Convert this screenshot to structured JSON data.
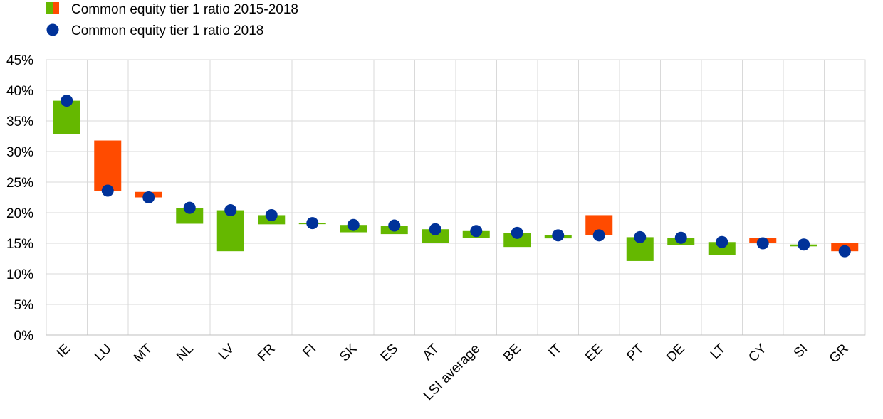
{
  "chart_data": {
    "type": "bar",
    "title": "",
    "xlabel": "",
    "ylabel": "",
    "ylim": [
      0,
      45
    ],
    "yticks": [
      "0%",
      "5%",
      "10%",
      "15%",
      "20%",
      "25%",
      "30%",
      "35%",
      "40%",
      "45%"
    ],
    "grid": true,
    "legend": {
      "placement": "top-left",
      "range_label": "Common equity tier 1 ratio 2015-2018",
      "point_label": "Common equity tier 1 ratio 2018"
    },
    "colors": {
      "increase": "#65B800",
      "decrease": "#FF4B00",
      "point": "#003299"
    },
    "categories": [
      "IE",
      "LU",
      "MT",
      "NL",
      "LV",
      "FR",
      "FI",
      "SK",
      "ES",
      "AT",
      "LSI average",
      "BE",
      "IT",
      "EE",
      "PT",
      "DE",
      "LT",
      "CY",
      "SI",
      "GR"
    ],
    "series": [
      {
        "name": "Common equity tier 1 ratio 2015-2018",
        "role": "ratio_2015",
        "values": [
          32.8,
          31.8,
          23.4,
          18.2,
          13.7,
          18.1,
          18.2,
          16.8,
          16.5,
          15.0,
          15.9,
          14.4,
          15.8,
          19.6,
          12.1,
          14.7,
          13.1,
          15.9,
          14.5,
          15.1
        ]
      },
      {
        "name": "Common equity tier 1 ratio 2018",
        "role": "ratio_2018",
        "values": [
          38.3,
          23.6,
          22.5,
          20.8,
          20.4,
          19.6,
          18.3,
          18.0,
          17.9,
          17.3,
          17.0,
          16.7,
          16.3,
          16.3,
          16.0,
          15.9,
          15.2,
          15.0,
          14.8,
          13.7
        ]
      }
    ]
  }
}
